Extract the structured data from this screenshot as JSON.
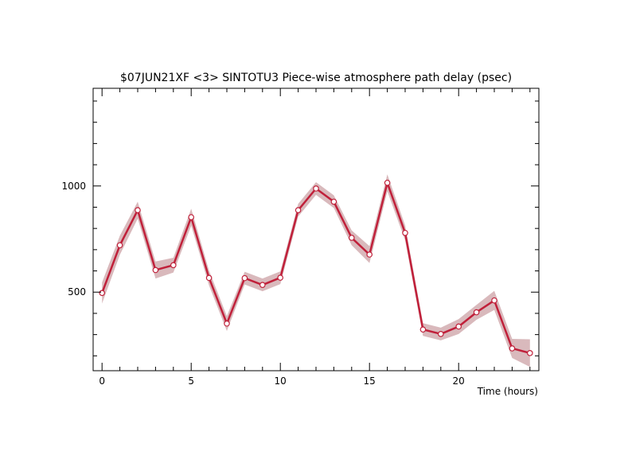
{
  "chart_data": {
    "type": "line",
    "title": "$07JUN21XF <3>  SINTOTU3  Piece-wise atmosphere path delay (psec)",
    "xlabel": "Time (hours)",
    "ylabel": "",
    "xlim": [
      -0.5,
      24.5
    ],
    "ylim": [
      130,
      1460
    ],
    "x_ticks": [
      0,
      5,
      10,
      15,
      20
    ],
    "y_ticks": [
      500,
      1000
    ],
    "grid": false,
    "legend": "none",
    "series": [
      {
        "x": [
          0,
          1,
          2,
          3,
          4,
          5,
          6,
          7,
          8,
          9,
          10,
          11,
          12,
          13,
          14,
          15,
          16,
          17,
          18,
          19,
          20,
          21,
          22,
          23,
          24
        ],
        "y": [
          496,
          721,
          886,
          604,
          627,
          853,
          567,
          352,
          566,
          534,
          568,
          886,
          988,
          926,
          756,
          677,
          1015,
          779,
          324,
          303,
          338,
          405,
          461,
          235,
          213
        ],
        "band": [
          50,
          45,
          40,
          40,
          35,
          40,
          35,
          35,
          30,
          30,
          30,
          30,
          30,
          30,
          35,
          40,
          40,
          35,
          30,
          30,
          35,
          35,
          45,
          45,
          65
        ],
        "line_color": "#c0203a",
        "band_color": "#d9b9bc"
      }
    ]
  }
}
